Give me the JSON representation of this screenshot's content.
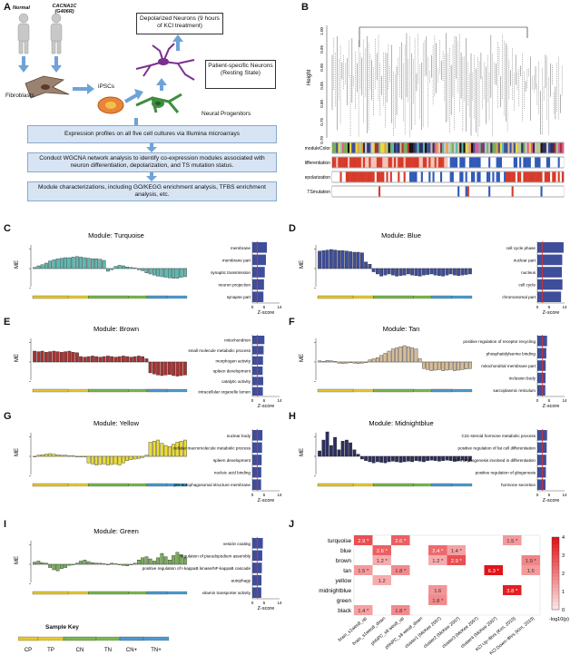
{
  "panels": [
    "A",
    "B",
    "C",
    "D",
    "E",
    "F",
    "G",
    "H",
    "I",
    "J"
  ],
  "panel_a": {
    "normal_label": "Normal",
    "gene_label": "CACNA1C (G406R)",
    "fibroblasts": "Fibroblasts",
    "ipscs": "iPSCs",
    "neural_progenitors": "Neural Progenitors",
    "depolarized_neurons": "Depolarized Neurons (9 hours of KCl treatment)",
    "patient_neurons": "Patient-specific Neurons (Resting State)",
    "steps": [
      "Expression profiles on all five cell cultures via Illumina microarrays",
      "Conduct WGCNA network analysis to identify co-expression modules associated with neuron differentiation, depolarization, and TS mutation status.",
      "Module characterizations, including GO/KEGG enrichment analysis, TFBS enrichment analysis, etc."
    ],
    "colors": {
      "flow_fill": "#d7e4f3",
      "cell_purple": "#7b2f8e",
      "cell_green": "#3e8e3e",
      "ipsc_orange": "#e8853a"
    }
  },
  "panel_b": {
    "ylabel": "Height",
    "yticks": [
      "1.00",
      "0.95",
      "0.90",
      "0.85",
      "0.80",
      "0.75",
      "0.70"
    ],
    "tracks": [
      "moduleColor",
      "differentiation",
      "depolarization",
      "TSmutation"
    ]
  },
  "modules": [
    {
      "id": "C",
      "title": "Module: Turquoise",
      "color": "#5fb8b0",
      "terms": [
        "membrane",
        "membrane part",
        "synaptic transmission",
        "neuron projection",
        "synapse part"
      ],
      "zscores": [
        7.5,
        7.0,
        6.4,
        6.0,
        5.7
      ],
      "values": [
        0.02,
        0.05,
        0.07,
        0.1,
        0.14,
        0.16,
        0.18,
        0.19,
        0.2,
        0.2,
        0.21,
        0.22,
        0.21,
        0.2,
        0.19,
        0.18,
        0.18,
        0.17,
        0.15,
        -0.05,
        -0.02,
        0.04,
        0.06,
        0.05,
        0.03,
        0.02,
        0.01,
        -0.02,
        -0.04,
        -0.08,
        -0.1,
        -0.12,
        -0.14,
        -0.15,
        -0.16,
        -0.17,
        -0.18,
        -0.18,
        -0.16,
        -0.15
      ]
    },
    {
      "id": "D",
      "title": "Module: Blue",
      "color": "#3f4e9a",
      "terms": [
        "cell cycle phase",
        "nuclear part",
        "nucleus",
        "cell cycle",
        "chromosomal part"
      ],
      "zscores": [
        13.5,
        12.8,
        12.6,
        12.9,
        12.2
      ],
      "values": [
        0.32,
        0.33,
        0.34,
        0.35,
        0.34,
        0.33,
        0.33,
        0.32,
        0.31,
        0.3,
        0.3,
        0.29,
        0.12,
        0.08,
        -0.06,
        -0.1,
        -0.14,
        -0.12,
        -0.1,
        -0.12,
        -0.14,
        -0.13,
        -0.12,
        -0.1,
        -0.12,
        -0.13,
        -0.14,
        -0.12,
        -0.11,
        -0.1,
        -0.12,
        -0.13,
        -0.14,
        -0.12,
        -0.1,
        -0.12,
        -0.13,
        -0.12,
        -0.11,
        -0.1
      ]
    },
    {
      "id": "E",
      "title": "Module: Brown",
      "color": "#a83232",
      "terms": [
        "mitochondrion",
        "small molecule metabolic process",
        "morphogen activity",
        "spleen development",
        "catalytic activity",
        "intracellular organelle lumen"
      ],
      "zscores": [
        6.2,
        5.8,
        5.5,
        5.3,
        5.6,
        5.4
      ],
      "values": [
        0.2,
        0.19,
        0.2,
        0.18,
        0.19,
        0.2,
        0.19,
        0.18,
        0.19,
        0.2,
        0.18,
        0.17,
        0.1,
        0.09,
        0.1,
        0.11,
        0.1,
        0.09,
        0.1,
        0.11,
        0.1,
        0.09,
        0.1,
        0.11,
        0.1,
        0.09,
        0.1,
        0.11,
        0.1,
        0.06,
        -0.2,
        -0.22,
        -0.24,
        -0.25,
        -0.24,
        -0.23,
        -0.25,
        -0.26,
        -0.25,
        -0.24
      ]
    },
    {
      "id": "F",
      "title": "Module: Tan",
      "color": "#d6bd98",
      "terms": [
        "positive regulation of receptor recycling",
        "phosphatidylserine binding",
        "mitochondrial membrane part",
        "inclusion body",
        "sarcoplasmic reticulum"
      ],
      "zscores": [
        5.0,
        4.6,
        4.3,
        4.2,
        4.1
      ],
      "values": [
        0.02,
        0.01,
        0.03,
        0.02,
        0.01,
        -0.02,
        -0.03,
        -0.02,
        -0.01,
        -0.02,
        -0.03,
        -0.02,
        -0.01,
        0.04,
        0.06,
        0.08,
        0.12,
        0.16,
        0.2,
        0.24,
        0.26,
        0.28,
        0.3,
        0.28,
        0.26,
        0.24,
        0.06,
        -0.12,
        -0.14,
        -0.16,
        -0.15,
        -0.14,
        -0.16,
        -0.15,
        -0.14,
        -0.16,
        -0.15,
        -0.14,
        -0.13,
        -0.12
      ]
    },
    {
      "id": "G",
      "title": "Module: Yellow",
      "color": "#e9dc3c",
      "terms": [
        "nuclear body",
        "cellular macromolecule metabolic process",
        "spleen development",
        "nucleic acid binding",
        "pre-autophagosomal structure membrane"
      ],
      "zscores": [
        5.2,
        5.0,
        4.8,
        4.6,
        4.5
      ],
      "values": [
        0.0,
        0.02,
        0.03,
        0.04,
        0.05,
        0.04,
        0.03,
        0.02,
        0.02,
        0.01,
        0.01,
        0.0,
        0.0,
        -0.01,
        -0.12,
        -0.14,
        -0.16,
        -0.15,
        -0.14,
        -0.16,
        -0.15,
        -0.14,
        -0.16,
        -0.12,
        -0.08,
        -0.06,
        -0.05,
        -0.04,
        -0.02,
        0.02,
        0.26,
        0.28,
        0.3,
        0.24,
        0.2,
        0.18,
        0.22,
        0.26,
        0.28,
        0.3
      ]
    },
    {
      "id": "H",
      "title": "Module: Midnightblue",
      "color": "#2c2f5e",
      "terms": [
        "C21-steroid hormone metabolic process",
        "positive regulation of fat cell differentiation",
        "cell morphogenesis involved in differentiation",
        "positive regulation of gliogenesis",
        "hormone secretion"
      ],
      "zscores": [
        5.0,
        4.8,
        4.6,
        4.4,
        4.2
      ],
      "values": [
        0.1,
        0.3,
        0.45,
        0.2,
        0.35,
        0.12,
        0.28,
        0.3,
        0.25,
        0.12,
        0.04,
        -0.05,
        -0.08,
        -0.1,
        -0.12,
        -0.1,
        -0.11,
        -0.12,
        -0.1,
        -0.09,
        -0.1,
        -0.11,
        -0.1,
        -0.09,
        -0.1,
        -0.08,
        -0.09,
        -0.1,
        -0.08,
        -0.07,
        -0.08,
        -0.09,
        -0.08,
        -0.07,
        -0.08,
        -0.09,
        -0.08,
        -0.07,
        -0.08,
        -0.09
      ]
    },
    {
      "id": "I",
      "title": "Module: Green",
      "color": "#79ad5a",
      "terms": [
        "vesicle coating",
        "regulation of pseudopodium assembly",
        "positive regulation of I-kappaB kinase/NF-kappaB cascade",
        "autophagy",
        "vitamin transporter activity"
      ],
      "zscores": [
        5.4,
        5.1,
        4.9,
        4.7,
        4.6
      ],
      "values": [
        0.04,
        0.06,
        0.03,
        0.02,
        -0.06,
        -0.1,
        -0.12,
        -0.08,
        -0.06,
        -0.02,
        0.0,
        0.02,
        0.06,
        0.08,
        0.05,
        0.03,
        0.02,
        0.02,
        0.01,
        0.0,
        0.02,
        0.01,
        0.0,
        -0.02,
        -0.03,
        0.0,
        0.02,
        0.08,
        0.12,
        0.14,
        0.1,
        0.06,
        0.12,
        0.2,
        0.14,
        0.08,
        0.16,
        0.22,
        0.18,
        0.12
      ]
    }
  ],
  "sample_key": {
    "title": "Sample Key",
    "labels": [
      "CP",
      "TP",
      "CN",
      "TN",
      "CN+",
      "TN+"
    ]
  },
  "chart_data": {
    "type": "heatmap",
    "title": "",
    "rows": [
      "turquoise",
      "blue",
      "brown",
      "tan",
      "yellow",
      "midnightblue",
      "green",
      "black"
    ],
    "columns": [
      "brain_s1wes8_up",
      "brain_s1wes8_down",
      "phNPC_s8 wes8_up",
      "phNPC_s8 wes8_down",
      "cluster1 (McKee 2007)",
      "cluster2 (McKee 2007)",
      "cluster3 (McKee 2007)",
      "cluster4 (McKee 2007)",
      "KCl Up~8hrs (Kim, 2010)",
      "KCl Down~8hrs (Kim, 2010)"
    ],
    "cells": [
      {
        "row": 0,
        "col": 0,
        "value": 2.9,
        "label": "2.9 *"
      },
      {
        "row": 0,
        "col": 2,
        "value": 2.6,
        "label": "2.6 *"
      },
      {
        "row": 0,
        "col": 8,
        "value": 1.5,
        "label": "1.5 *"
      },
      {
        "row": 1,
        "col": 1,
        "value": 2.6,
        "label": "2.6 *"
      },
      {
        "row": 1,
        "col": 4,
        "value": 2.4,
        "label": "2.4 *"
      },
      {
        "row": 1,
        "col": 5,
        "value": 1.4,
        "label": "1.4 *"
      },
      {
        "row": 2,
        "col": 1,
        "value": 1.2,
        "label": "1.2 *"
      },
      {
        "row": 2,
        "col": 4,
        "value": 1.2,
        "label": "1.2 *"
      },
      {
        "row": 2,
        "col": 5,
        "value": 2.9,
        "label": "2.9 *"
      },
      {
        "row": 2,
        "col": 9,
        "value": 1.9,
        "label": "1.9 *"
      },
      {
        "row": 3,
        "col": 0,
        "value": 1.5,
        "label": "1.5 *"
      },
      {
        "row": 3,
        "col": 2,
        "value": 1.8,
        "label": "1.8 *"
      },
      {
        "row": 3,
        "col": 7,
        "value": 6.3,
        "label": "6.3 *"
      },
      {
        "row": 3,
        "col": 9,
        "value": 1.5,
        "label": "1.5"
      },
      {
        "row": 4,
        "col": 1,
        "value": 1.2,
        "label": "1.2"
      },
      {
        "row": 5,
        "col": 4,
        "value": 1.6,
        "label": "1.6"
      },
      {
        "row": 5,
        "col": 8,
        "value": 3.8,
        "label": "3.8 *"
      },
      {
        "row": 6,
        "col": 4,
        "value": 1.8,
        "label": "1.8 *"
      },
      {
        "row": 7,
        "col": 0,
        "value": 1.4,
        "label": "1.4 *"
      },
      {
        "row": 7,
        "col": 2,
        "value": 1.8,
        "label": "1.8 *"
      }
    ],
    "colorbar": {
      "ticks": [
        "4",
        "3",
        "2",
        "1",
        "0"
      ],
      "label": "-log10(p)",
      "range": [
        0,
        4
      ]
    },
    "ylabel_me": "ME",
    "zscore_label": "Z-score",
    "zscore_ticks": [
      "0",
      "6",
      "14"
    ]
  }
}
